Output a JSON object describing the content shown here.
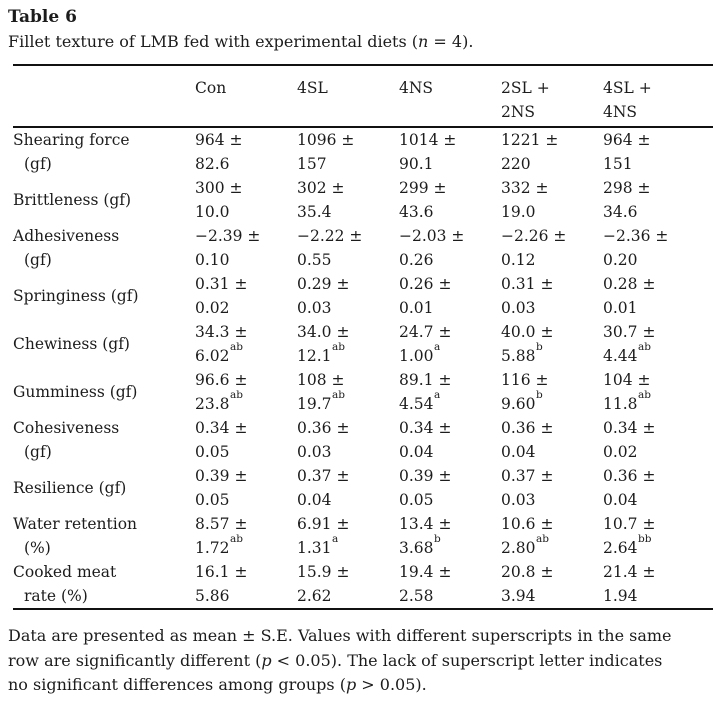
{
  "page": {
    "title": "Table 6",
    "caption_segments": [
      {
        "t": "Fillet texture of LMB fed with experimental diets (",
        "i": false
      },
      {
        "t": "n",
        "i": true
      },
      {
        "t": " = 4).",
        "i": false
      }
    ],
    "footnote_lines": [
      [
        {
          "t": "Data are presented as mean ± S.E. Values with different superscripts in the same",
          "i": false
        }
      ],
      [
        {
          "t": "row are significantly different (",
          "i": false
        },
        {
          "t": "p",
          "i": true
        },
        {
          "t": " < 0.05). The lack of superscript letter indicates",
          "i": false
        }
      ],
      [
        {
          "t": "no significant differences among groups (",
          "i": false
        },
        {
          "t": "p",
          "i": true
        },
        {
          "t": " > 0.05).",
          "i": false
        }
      ]
    ]
  },
  "table": {
    "pm_symbol": "±",
    "columns": [
      {
        "lines": [
          "Con"
        ]
      },
      {
        "lines": [
          "4SL"
        ]
      },
      {
        "lines": [
          "4NS"
        ]
      },
      {
        "lines": [
          "2SL +",
          "2NS"
        ]
      },
      {
        "lines": [
          "4SL +",
          "4NS"
        ]
      }
    ],
    "rows": [
      {
        "label_lines": [
          "Shearing force",
          "(gf)"
        ],
        "cells": [
          {
            "mean": "964",
            "se": "82.6",
            "sup": ""
          },
          {
            "mean": "1096",
            "se": "157",
            "sup": ""
          },
          {
            "mean": "1014",
            "se": "90.1",
            "sup": ""
          },
          {
            "mean": "1221",
            "se": "220",
            "sup": ""
          },
          {
            "mean": "964",
            "se": "151",
            "sup": ""
          }
        ]
      },
      {
        "label_lines": [
          "Brittleness (gf)"
        ],
        "cells": [
          {
            "mean": "300",
            "se": "10.0",
            "sup": ""
          },
          {
            "mean": "302",
            "se": "35.4",
            "sup": ""
          },
          {
            "mean": "299",
            "se": "43.6",
            "sup": ""
          },
          {
            "mean": "332",
            "se": "19.0",
            "sup": ""
          },
          {
            "mean": "298",
            "se": "34.6",
            "sup": ""
          }
        ]
      },
      {
        "label_lines": [
          "Adhesiveness",
          "(gf)"
        ],
        "cells": [
          {
            "mean": "−2.39",
            "se": "0.10",
            "sup": ""
          },
          {
            "mean": "−2.22",
            "se": "0.55",
            "sup": ""
          },
          {
            "mean": "−2.03",
            "se": "0.26",
            "sup": ""
          },
          {
            "mean": "−2.26",
            "se": "0.12",
            "sup": ""
          },
          {
            "mean": "−2.36",
            "se": "0.20",
            "sup": ""
          }
        ]
      },
      {
        "label_lines": [
          "Springiness (gf)"
        ],
        "cells": [
          {
            "mean": "0.31",
            "se": "0.02",
            "sup": ""
          },
          {
            "mean": "0.29",
            "se": "0.03",
            "sup": ""
          },
          {
            "mean": "0.26",
            "se": "0.01",
            "sup": ""
          },
          {
            "mean": "0.31",
            "se": "0.03",
            "sup": ""
          },
          {
            "mean": "0.28",
            "se": "0.01",
            "sup": ""
          }
        ]
      },
      {
        "label_lines": [
          "Chewiness (gf)"
        ],
        "cells": [
          {
            "mean": "34.3",
            "se": "6.02",
            "sup": "ab"
          },
          {
            "mean": "34.0",
            "se": "12.1",
            "sup": "ab"
          },
          {
            "mean": "24.7",
            "se": "1.00",
            "sup": "a"
          },
          {
            "mean": "40.0",
            "se": "5.88",
            "sup": "b"
          },
          {
            "mean": "30.7",
            "se": "4.44",
            "sup": "ab"
          }
        ]
      },
      {
        "label_lines": [
          "Gumminess (gf)"
        ],
        "cells": [
          {
            "mean": "96.6",
            "se": "23.8",
            "sup": "ab"
          },
          {
            "mean": "108",
            "se": "19.7",
            "sup": "ab"
          },
          {
            "mean": "89.1",
            "se": "4.54",
            "sup": "a"
          },
          {
            "mean": "116",
            "se": "9.60",
            "sup": "b"
          },
          {
            "mean": "104",
            "se": "11.8",
            "sup": "ab"
          }
        ]
      },
      {
        "label_lines": [
          "Cohesiveness",
          "(gf)"
        ],
        "cells": [
          {
            "mean": "0.34",
            "se": "0.05",
            "sup": ""
          },
          {
            "mean": "0.36",
            "se": "0.03",
            "sup": ""
          },
          {
            "mean": "0.34",
            "se": "0.04",
            "sup": ""
          },
          {
            "mean": "0.36",
            "se": "0.04",
            "sup": ""
          },
          {
            "mean": "0.34",
            "se": "0.02",
            "sup": ""
          }
        ]
      },
      {
        "label_lines": [
          "Resilience (gf)"
        ],
        "cells": [
          {
            "mean": "0.39",
            "se": "0.05",
            "sup": ""
          },
          {
            "mean": "0.37",
            "se": "0.04",
            "sup": ""
          },
          {
            "mean": "0.39",
            "se": "0.05",
            "sup": ""
          },
          {
            "mean": "0.37",
            "se": "0.03",
            "sup": ""
          },
          {
            "mean": "0.36",
            "se": "0.04",
            "sup": ""
          }
        ]
      },
      {
        "label_lines": [
          "Water retention",
          "(%)"
        ],
        "cells": [
          {
            "mean": "8.57",
            "se": "1.72",
            "sup": "ab"
          },
          {
            "mean": "6.91",
            "se": "1.31",
            "sup": "a"
          },
          {
            "mean": "13.4",
            "se": "3.68",
            "sup": "b"
          },
          {
            "mean": "10.6",
            "se": "2.80",
            "sup": "ab"
          },
          {
            "mean": "10.7",
            "se": "2.64",
            "sup": "bb"
          }
        ]
      },
      {
        "label_lines": [
          "Cooked meat",
          "rate (%)"
        ],
        "cells": [
          {
            "mean": "16.1",
            "se": "5.86",
            "sup": ""
          },
          {
            "mean": "15.9",
            "se": "2.62",
            "sup": ""
          },
          {
            "mean": "19.4",
            "se": "2.58",
            "sup": ""
          },
          {
            "mean": "20.8",
            "se": "3.94",
            "sup": ""
          },
          {
            "mean": "21.4",
            "se": "1.94",
            "sup": ""
          }
        ]
      }
    ]
  },
  "colors": {
    "text": "#1c1c1c",
    "rule": "#111111",
    "background": "#ffffff"
  }
}
